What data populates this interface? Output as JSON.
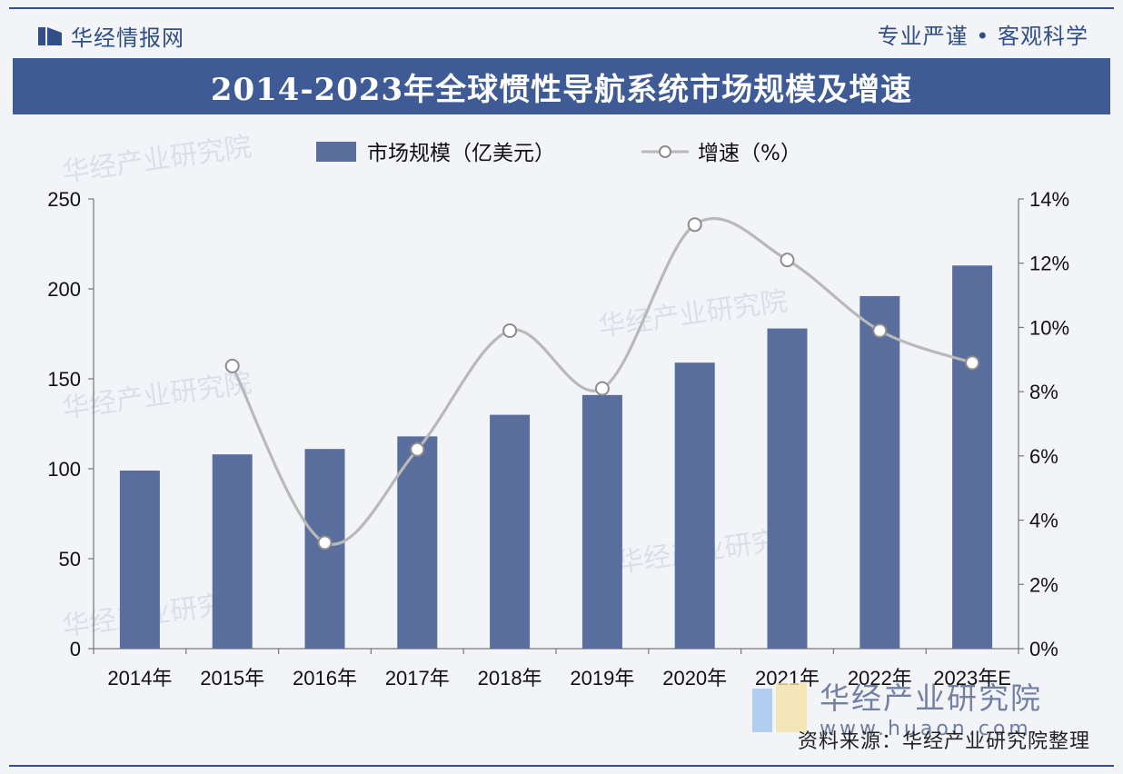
{
  "header": {
    "brand": "华经情报网",
    "slogan": "专业严谨 • 客观科学"
  },
  "footer": {
    "source": "资料来源：华经产业研究院整理",
    "logo_text": "华经产业研究院",
    "logo_url": "www.huaon.com"
  },
  "watermark": {
    "text": "华经产业研究院"
  },
  "colors": {
    "bar": "#5a6e9e",
    "line": "#b9b9b9",
    "accent": "#2f4f86"
  },
  "chart_data": {
    "type": "bar",
    "title": "2014-2023年全球惯性导航系统市场规模及增速",
    "categories": [
      "2014年",
      "2015年",
      "2016年",
      "2017年",
      "2018年",
      "2019年",
      "2020年",
      "2021年",
      "2022年",
      "2023年E"
    ],
    "series": [
      {
        "name": "市场规模（亿美元）",
        "type": "bar",
        "axis": "left",
        "values": [
          99,
          108,
          111,
          118,
          130,
          141,
          159,
          178,
          196,
          213
        ]
      },
      {
        "name": "增速（%）",
        "type": "line",
        "axis": "right",
        "values": [
          null,
          8.8,
          3.3,
          6.2,
          9.9,
          8.1,
          13.2,
          12.1,
          9.9,
          8.9
        ]
      }
    ],
    "ylim_left": [
      0,
      250
    ],
    "yticks_left": [
      "0",
      "50",
      "100",
      "150",
      "200",
      "250"
    ],
    "ylim_right": [
      0,
      14
    ],
    "yticks_right": [
      "0%",
      "2%",
      "4%",
      "6%",
      "8%",
      "10%",
      "12%",
      "14%"
    ],
    "legend": "top-center",
    "grid": false
  }
}
